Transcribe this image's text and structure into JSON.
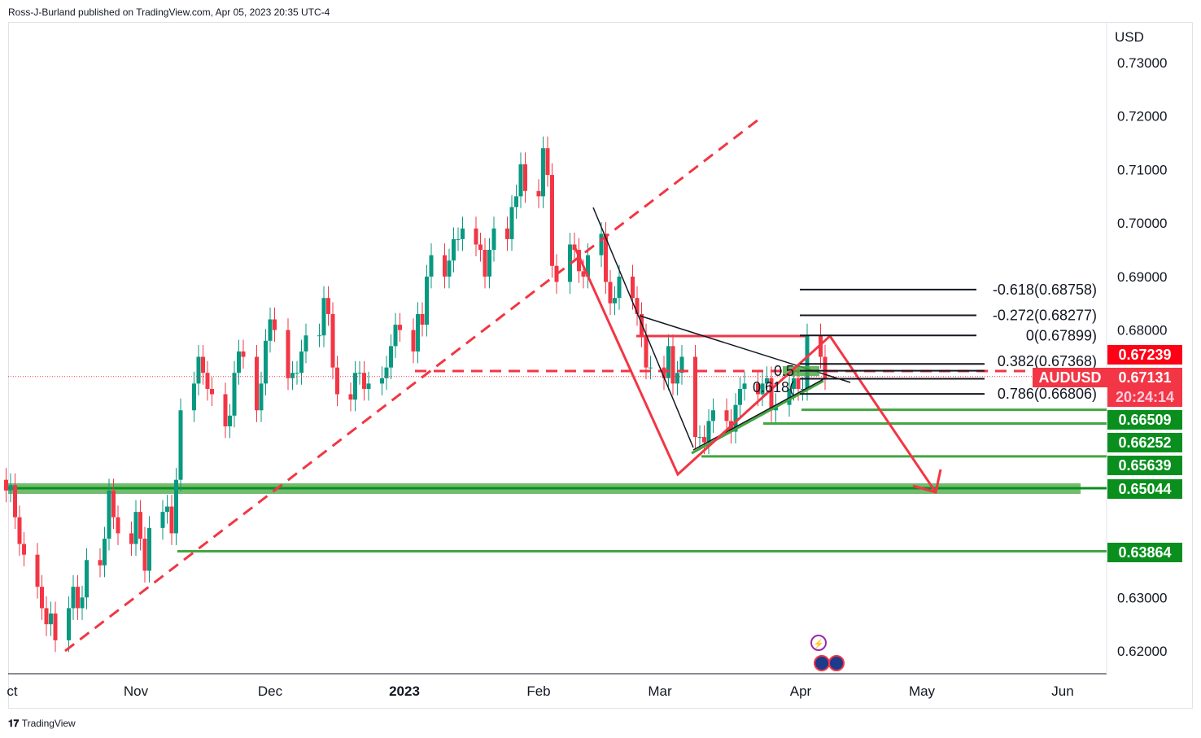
{
  "header": "Ross-J-Burland published on TradingView.com, Apr 05, 2023 20:35 UTC-4",
  "footer": "TradingView",
  "colors": {
    "up": "#089981",
    "down": "#f23645",
    "badge_green": "#0a8f1e",
    "badge_red": "#ff0016",
    "drawing_red": "#f23645",
    "drawing_green": "#43a640"
  },
  "chart_data": {
    "type": "candlestick",
    "symbol": "AUDUSD",
    "currency": "USD",
    "start_date": "2022-10-03",
    "closes": [
      0.65,
      0.651,
      0.645,
      0.64,
      0.638,
      0.632,
      0.628,
      0.625,
      0.627,
      0.622,
      0.628,
      0.632,
      0.628,
      0.63,
      0.637,
      0.636,
      0.641,
      0.65,
      0.645,
      0.642,
      0.64,
      0.646,
      0.641,
      0.635,
      0.643,
      0.646,
      0.647,
      0.642,
      0.652,
      0.665,
      0.67,
      0.675,
      0.672,
      0.669,
      0.668,
      0.662,
      0.664,
      0.672,
      0.676,
      0.675,
      0.665,
      0.67,
      0.678,
      0.682,
      0.68,
      0.671,
      0.672,
      0.672,
      0.676,
      0.679,
      0.679,
      0.686,
      0.683,
      0.673,
      0.668,
      0.667,
      0.672,
      0.672,
      0.669,
      0.67,
      0.671,
      0.673,
      0.677,
      0.681,
      0.68,
      0.676,
      0.683,
      0.681,
      0.69,
      0.694,
      0.69,
      0.693,
      0.697,
      0.697,
      0.699,
      0.696,
      0.695,
      0.69,
      0.695,
      0.699,
      0.697,
      0.703,
      0.705,
      0.711,
      0.706,
      0.705,
      0.714,
      0.709,
      0.692,
      0.689,
      0.696,
      0.695,
      0.691,
      0.69,
      0.694,
      0.698,
      0.689,
      0.685,
      0.686,
      0.69,
      0.686,
      0.683,
      0.679,
      0.673,
      0.673,
      0.671,
      0.677,
      0.67,
      0.672,
      0.675,
      0.66,
      0.66,
      0.659,
      0.663,
      0.665,
      0.663,
      0.661,
      0.666,
      0.669,
      0.67,
      0.668,
      0.67,
      0.671,
      0.665,
      0.666,
      0.669,
      0.671,
      0.669,
      0.669,
      0.679,
      0.675,
      0.671
    ],
    "ylim": [
      0.6145,
      0.7375
    ],
    "y_ticks": [
      "0.73000",
      "0.72000",
      "0.71000",
      "0.70000",
      "0.69000",
      "0.68000",
      "0.63000",
      "0.62000"
    ],
    "y_tick_values": [
      0.73,
      0.72,
      0.71,
      0.7,
      0.69,
      0.68,
      0.63,
      0.62
    ],
    "x_ticks": [
      "ct",
      "Nov",
      "Dec",
      "2023",
      "Feb",
      "Mar",
      "Apr",
      "May",
      "Jun"
    ],
    "fib_levels": [
      "-0.618(0.68758)",
      "-0.272(0.68277)",
      "0(0.67899)",
      "0.382(0.67368)",
      "0.5",
      "0.618(",
      "0.786(0.66806)"
    ],
    "fib_values": [
      0.68758,
      0.68277,
      0.67899,
      0.67368,
      0.6724,
      0.6709,
      0.66806
    ],
    "price_labels": {
      "prev": "0.67239",
      "symbol": "AUDUSD",
      "last": "0.67131",
      "countdown": "20:24:14"
    },
    "support_levels": [
      "0.66509",
      "0.66252",
      "0.65639",
      "0.65044",
      "0.63864"
    ],
    "support_values": [
      0.66509,
      0.66252,
      0.65639,
      0.65044,
      0.63864
    ]
  }
}
